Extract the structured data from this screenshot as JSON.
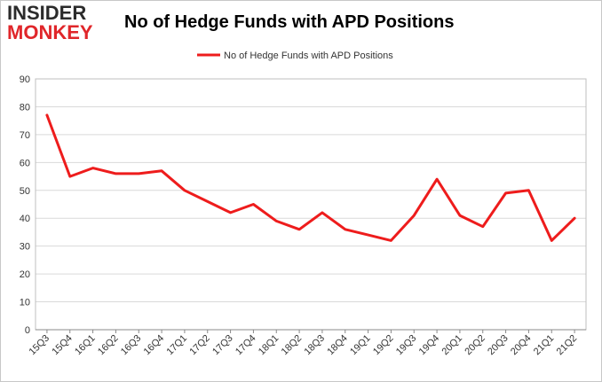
{
  "logo": {
    "line1": "INSIDER",
    "line2": "MONKEY"
  },
  "chart_data": {
    "type": "line",
    "title": "No of Hedge Funds with APD Positions",
    "xlabel": "",
    "ylabel": "",
    "ylim": [
      0,
      90
    ],
    "yticks": [
      0,
      10,
      20,
      30,
      40,
      50,
      60,
      70,
      80,
      90
    ],
    "grid": true,
    "legend": "top-center",
    "categories": [
      "15Q3",
      "15Q4",
      "16Q1",
      "16Q2",
      "16Q3",
      "16Q4",
      "17Q1",
      "17Q2",
      "17Q3",
      "17Q4",
      "18Q1",
      "18Q2",
      "18Q3",
      "18Q4",
      "19Q1",
      "19Q2",
      "19Q3",
      "19Q4",
      "20Q1",
      "20Q2",
      "20Q3",
      "20Q4",
      "21Q1",
      "21Q2"
    ],
    "series": [
      {
        "name": "No of Hedge Funds with APD Positions",
        "color": "#ee1c1c",
        "values": [
          77,
          55,
          58,
          56,
          56,
          57,
          50,
          46,
          42,
          45,
          39,
          36,
          42,
          36,
          34,
          32,
          41,
          54,
          41,
          37,
          49,
          50,
          32,
          40
        ]
      }
    ]
  }
}
